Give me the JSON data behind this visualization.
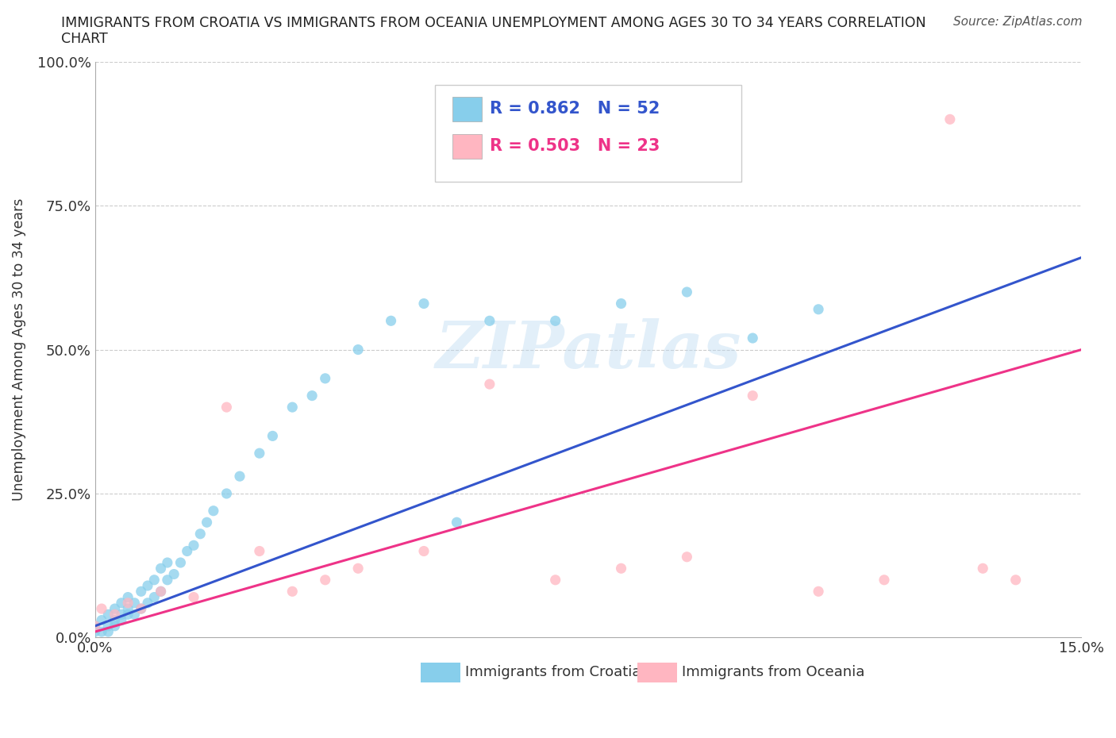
{
  "title_line1": "IMMIGRANTS FROM CROATIA VS IMMIGRANTS FROM OCEANIA UNEMPLOYMENT AMONG AGES 30 TO 34 YEARS CORRELATION",
  "title_line2": "CHART",
  "source": "Source: ZipAtlas.com",
  "ylabel": "Unemployment Among Ages 30 to 34 years",
  "xlim": [
    0.0,
    0.15
  ],
  "ylim": [
    0.0,
    1.0
  ],
  "xtick_pos": [
    0.0,
    0.05,
    0.1,
    0.15
  ],
  "xtick_labels": [
    "0.0%",
    "",
    "",
    "15.0%"
  ],
  "ytick_pos": [
    0.0,
    0.25,
    0.5,
    0.75,
    1.0
  ],
  "ytick_labels": [
    "0.0%",
    "25.0%",
    "50.0%",
    "75.0%",
    "100.0%"
  ],
  "croatia_color": "#87CEEB",
  "oceania_color": "#FFB6C1",
  "croatia_line_color": "#3355CC",
  "oceania_line_color": "#EE3388",
  "croatia_R": 0.862,
  "croatia_N": 52,
  "oceania_R": 0.503,
  "oceania_N": 23,
  "legend_label_croatia": "Immigrants from Croatia",
  "legend_label_oceania": "Immigrants from Oceania",
  "watermark": "ZIPatlas",
  "background_color": "#ffffff",
  "grid_color": "#cccccc",
  "croatia_scatter_x": [
    0.0,
    0.0,
    0.001,
    0.001,
    0.002,
    0.002,
    0.002,
    0.003,
    0.003,
    0.003,
    0.004,
    0.004,
    0.004,
    0.005,
    0.005,
    0.005,
    0.006,
    0.006,
    0.007,
    0.007,
    0.008,
    0.008,
    0.009,
    0.009,
    0.01,
    0.01,
    0.011,
    0.011,
    0.012,
    0.013,
    0.014,
    0.015,
    0.016,
    0.017,
    0.018,
    0.02,
    0.022,
    0.025,
    0.027,
    0.03,
    0.033,
    0.035,
    0.04,
    0.045,
    0.05,
    0.055,
    0.06,
    0.07,
    0.08,
    0.09,
    0.1,
    0.11
  ],
  "croatia_scatter_y": [
    0.01,
    0.02,
    0.01,
    0.03,
    0.01,
    0.02,
    0.04,
    0.02,
    0.03,
    0.05,
    0.03,
    0.04,
    0.06,
    0.04,
    0.05,
    0.07,
    0.04,
    0.06,
    0.05,
    0.08,
    0.06,
    0.09,
    0.07,
    0.1,
    0.08,
    0.12,
    0.1,
    0.13,
    0.11,
    0.13,
    0.15,
    0.16,
    0.18,
    0.2,
    0.22,
    0.25,
    0.28,
    0.32,
    0.35,
    0.4,
    0.42,
    0.45,
    0.5,
    0.55,
    0.58,
    0.2,
    0.55,
    0.55,
    0.58,
    0.6,
    0.52,
    0.57
  ],
  "oceania_scatter_x": [
    0.0,
    0.001,
    0.003,
    0.005,
    0.007,
    0.01,
    0.015,
    0.02,
    0.025,
    0.03,
    0.035,
    0.04,
    0.05,
    0.06,
    0.07,
    0.08,
    0.09,
    0.1,
    0.11,
    0.12,
    0.13,
    0.135,
    0.14
  ],
  "oceania_scatter_y": [
    0.02,
    0.05,
    0.04,
    0.06,
    0.05,
    0.08,
    0.07,
    0.4,
    0.15,
    0.08,
    0.1,
    0.12,
    0.15,
    0.44,
    0.1,
    0.12,
    0.14,
    0.42,
    0.08,
    0.1,
    0.9,
    0.12,
    0.1
  ],
  "croatia_trend_x": [
    0.0,
    0.15
  ],
  "croatia_trend_y": [
    0.02,
    0.66
  ],
  "oceania_trend_x": [
    0.0,
    0.15
  ],
  "oceania_trend_y": [
    0.01,
    0.5
  ]
}
